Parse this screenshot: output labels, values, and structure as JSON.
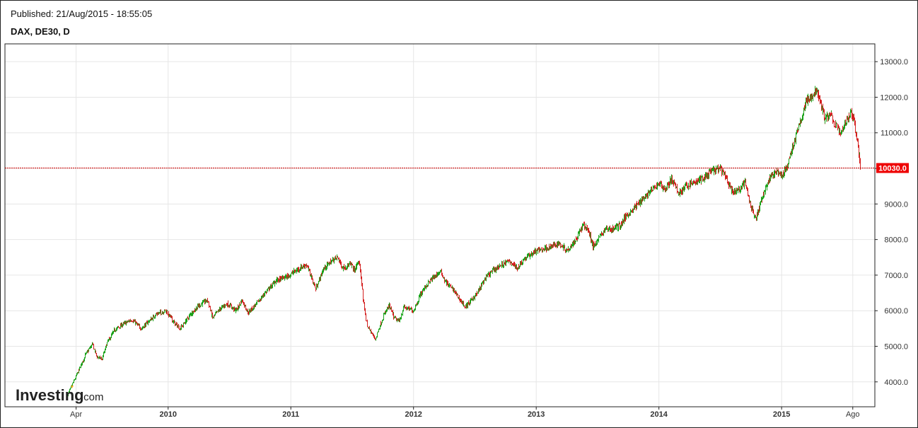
{
  "header": {
    "published": "Published: 21/Aug/2015 - 18:55:05",
    "symbol": "DAX, DE30, D"
  },
  "logo": {
    "main": "Investing",
    "suffix": ".com"
  },
  "colors": {
    "up": "#1aa31a",
    "down": "#d42020",
    "grid": "#e6e6e6",
    "axis": "#222222",
    "price_line": "#cc0000",
    "price_label_bg": "#ee0000"
  },
  "chart_data": {
    "type": "candlestick",
    "title": "DAX, DE30, D",
    "ylim": [
      3300,
      13500
    ],
    "xlim": [
      2008.67,
      2015.76
    ],
    "y_ticks": [
      {
        "value": 4000,
        "label": "4000.0"
      },
      {
        "value": 5000,
        "label": "5000.0"
      },
      {
        "value": 6000,
        "label": "6000.0"
      },
      {
        "value": 7000,
        "label": "7000.0"
      },
      {
        "value": 8000,
        "label": "8000.0"
      },
      {
        "value": 9000,
        "label": "9000.0"
      },
      {
        "value": 10000,
        "label": "10000.0"
      },
      {
        "value": 11000,
        "label": "11000.0"
      },
      {
        "value": 12000,
        "label": "12000.0"
      },
      {
        "value": 13000,
        "label": "13000.0"
      }
    ],
    "x_ticks": [
      {
        "value": 2009.25,
        "label": "Apr",
        "bold": false
      },
      {
        "value": 2010.0,
        "label": "2010",
        "bold": true
      },
      {
        "value": 2011.0,
        "label": "2011",
        "bold": true
      },
      {
        "value": 2012.0,
        "label": "2012",
        "bold": true
      },
      {
        "value": 2013.0,
        "label": "2013",
        "bold": true
      },
      {
        "value": 2014.0,
        "label": "2014",
        "bold": true
      },
      {
        "value": 2015.0,
        "label": "2015",
        "bold": true
      },
      {
        "value": 2015.58,
        "label": "Ago",
        "bold": false
      }
    ],
    "current_price": {
      "value": 10030,
      "label": "10030.0"
    },
    "path": [
      [
        2009.18,
        3650
      ],
      [
        2009.22,
        3950
      ],
      [
        2009.28,
        4400
      ],
      [
        2009.33,
        4800
      ],
      [
        2009.38,
        5050
      ],
      [
        2009.42,
        4700
      ],
      [
        2009.46,
        4650
      ],
      [
        2009.5,
        5100
      ],
      [
        2009.56,
        5450
      ],
      [
        2009.62,
        5600
      ],
      [
        2009.7,
        5750
      ],
      [
        2009.78,
        5500
      ],
      [
        2009.84,
        5700
      ],
      [
        2009.9,
        5900
      ],
      [
        2009.98,
        6000
      ],
      [
        2010.05,
        5650
      ],
      [
        2010.1,
        5500
      ],
      [
        2010.18,
        5900
      ],
      [
        2010.25,
        6150
      ],
      [
        2010.32,
        6300
      ],
      [
        2010.36,
        5800
      ],
      [
        2010.42,
        6050
      ],
      [
        2010.48,
        6200
      ],
      [
        2010.55,
        6000
      ],
      [
        2010.6,
        6300
      ],
      [
        2010.65,
        5950
      ],
      [
        2010.72,
        6200
      ],
      [
        2010.8,
        6550
      ],
      [
        2010.88,
        6850
      ],
      [
        2010.96,
        6950
      ],
      [
        2011.05,
        7150
      ],
      [
        2011.12,
        7300
      ],
      [
        2011.16,
        7000
      ],
      [
        2011.2,
        6600
      ],
      [
        2011.26,
        7150
      ],
      [
        2011.33,
        7400
      ],
      [
        2011.38,
        7500
      ],
      [
        2011.42,
        7200
      ],
      [
        2011.48,
        7300
      ],
      [
        2011.52,
        7150
      ],
      [
        2011.55,
        7400
      ],
      [
        2011.57,
        7050
      ],
      [
        2011.59,
        6200
      ],
      [
        2011.62,
        5600
      ],
      [
        2011.65,
        5400
      ],
      [
        2011.69,
        5200
      ],
      [
        2011.72,
        5550
      ],
      [
        2011.76,
        5900
      ],
      [
        2011.8,
        6150
      ],
      [
        2011.84,
        5800
      ],
      [
        2011.88,
        5700
      ],
      [
        2011.92,
        6100
      ],
      [
        2012.0,
        6000
      ],
      [
        2012.06,
        6500
      ],
      [
        2012.12,
        6800
      ],
      [
        2012.18,
        7000
      ],
      [
        2012.22,
        7100
      ],
      [
        2012.26,
        6800
      ],
      [
        2012.32,
        6600
      ],
      [
        2012.38,
        6300
      ],
      [
        2012.42,
        6100
      ],
      [
        2012.47,
        6300
      ],
      [
        2012.52,
        6500
      ],
      [
        2012.58,
        6900
      ],
      [
        2012.65,
        7150
      ],
      [
        2012.72,
        7300
      ],
      [
        2012.78,
        7400
      ],
      [
        2012.84,
        7200
      ],
      [
        2012.9,
        7450
      ],
      [
        2012.98,
        7650
      ],
      [
        2013.06,
        7750
      ],
      [
        2013.12,
        7800
      ],
      [
        2013.18,
        7900
      ],
      [
        2013.25,
        7700
      ],
      [
        2013.32,
        8000
      ],
      [
        2013.38,
        8400
      ],
      [
        2013.42,
        8300
      ],
      [
        2013.46,
        7800
      ],
      [
        2013.5,
        8000
      ],
      [
        2013.56,
        8300
      ],
      [
        2013.62,
        8300
      ],
      [
        2013.68,
        8400
      ],
      [
        2013.74,
        8700
      ],
      [
        2013.8,
        8900
      ],
      [
        2013.88,
        9200
      ],
      [
        2013.96,
        9450
      ],
      [
        2014.0,
        9600
      ],
      [
        2014.05,
        9400
      ],
      [
        2014.1,
        9700
      ],
      [
        2014.16,
        9300
      ],
      [
        2014.22,
        9500
      ],
      [
        2014.28,
        9600
      ],
      [
        2014.35,
        9700
      ],
      [
        2014.42,
        9900
      ],
      [
        2014.5,
        10000
      ],
      [
        2014.55,
        9700
      ],
      [
        2014.6,
        9300
      ],
      [
        2014.65,
        9400
      ],
      [
        2014.7,
        9600
      ],
      [
        2014.74,
        9000
      ],
      [
        2014.79,
        8600
      ],
      [
        2014.84,
        9200
      ],
      [
        2014.9,
        9700
      ],
      [
        2014.95,
        9900
      ],
      [
        2015.0,
        9800
      ],
      [
        2015.04,
        10000
      ],
      [
        2015.08,
        10500
      ],
      [
        2015.12,
        11000
      ],
      [
        2015.16,
        11400
      ],
      [
        2015.2,
        11900
      ],
      [
        2015.25,
        12000
      ],
      [
        2015.28,
        12250
      ],
      [
        2015.31,
        11900
      ],
      [
        2015.35,
        11400
      ],
      [
        2015.4,
        11500
      ],
      [
        2015.44,
        11200
      ],
      [
        2015.48,
        11000
      ],
      [
        2015.52,
        11300
      ],
      [
        2015.56,
        11600
      ],
      [
        2015.59,
        11300
      ],
      [
        2015.62,
        10700
      ],
      [
        2015.64,
        10030
      ]
    ]
  }
}
